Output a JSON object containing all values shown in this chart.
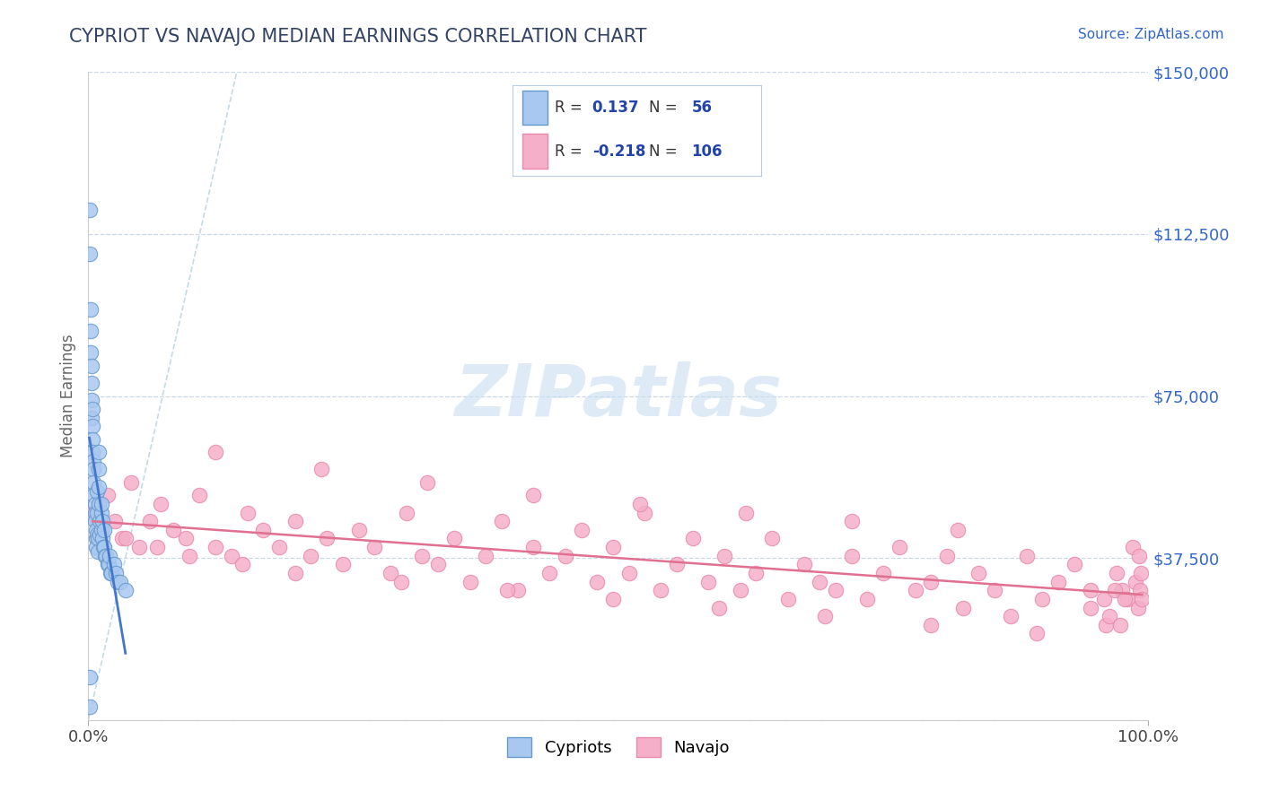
{
  "title": "CYPRIOT VS NAVAJO MEDIAN EARNINGS CORRELATION CHART",
  "source": "Source: ZipAtlas.com",
  "ylabel": "Median Earnings",
  "xlim": [
    0,
    1
  ],
  "ylim": [
    0,
    150000
  ],
  "yticks": [
    0,
    37500,
    75000,
    112500,
    150000
  ],
  "ytick_labels_right": [
    "",
    "$37,500",
    "$75,000",
    "$112,500",
    "$150,000"
  ],
  "xticks": [
    0,
    1
  ],
  "xtick_labels": [
    "0.0%",
    "100.0%"
  ],
  "cypriot_color": "#a8c8f0",
  "navajo_color": "#f5afc8",
  "cypriot_edge": "#6699cc",
  "navajo_edge": "#e88aaa",
  "trend_cypriot": "#4477cc",
  "trend_navajo": "#e07090",
  "legend_R_cypriot": "0.137",
  "legend_R_navajo": "-0.218",
  "legend_N_cypriot": "56",
  "legend_N_navajo": "106",
  "legend_color": "#2244aa",
  "background_color": "#ffffff",
  "grid_color": "#c8d8e8",
  "watermark": "ZIPatlas",
  "watermark_color": "#c8dff0",
  "title_color": "#334466",
  "source_color": "#3366cc",
  "axis_label_color": "#3366cc",
  "cypriot_x": [
    0.001,
    0.001,
    0.002,
    0.002,
    0.002,
    0.003,
    0.003,
    0.003,
    0.003,
    0.004,
    0.004,
    0.004,
    0.005,
    0.005,
    0.005,
    0.005,
    0.006,
    0.006,
    0.006,
    0.007,
    0.007,
    0.007,
    0.008,
    0.008,
    0.008,
    0.009,
    0.009,
    0.01,
    0.01,
    0.01,
    0.01,
    0.011,
    0.011,
    0.012,
    0.012,
    0.013,
    0.013,
    0.014,
    0.015,
    0.015,
    0.016,
    0.017,
    0.018,
    0.019,
    0.02,
    0.021,
    0.022,
    0.024,
    0.026,
    0.028,
    0.03,
    0.035,
    0.004,
    0.012,
    0.001,
    0.001
  ],
  "cypriot_y": [
    118000,
    108000,
    95000,
    90000,
    85000,
    82000,
    78000,
    74000,
    70000,
    68000,
    65000,
    62000,
    60000,
    58000,
    55000,
    52000,
    50000,
    48000,
    46000,
    44000,
    42000,
    40000,
    53000,
    48000,
    43000,
    42000,
    39000,
    62000,
    58000,
    54000,
    50000,
    46000,
    43000,
    48000,
    44000,
    46000,
    42000,
    40000,
    44000,
    40000,
    38000,
    38000,
    36000,
    36000,
    38000,
    34000,
    34000,
    36000,
    34000,
    32000,
    32000,
    30000,
    72000,
    50000,
    10000,
    3000
  ],
  "navajo_x": [
    0.004,
    0.008,
    0.012,
    0.018,
    0.025,
    0.032,
    0.04,
    0.048,
    0.058,
    0.068,
    0.08,
    0.092,
    0.105,
    0.12,
    0.135,
    0.15,
    0.165,
    0.18,
    0.195,
    0.21,
    0.225,
    0.24,
    0.255,
    0.27,
    0.285,
    0.3,
    0.315,
    0.33,
    0.345,
    0.36,
    0.375,
    0.39,
    0.405,
    0.42,
    0.435,
    0.45,
    0.465,
    0.48,
    0.495,
    0.51,
    0.525,
    0.54,
    0.555,
    0.57,
    0.585,
    0.6,
    0.615,
    0.63,
    0.645,
    0.66,
    0.675,
    0.69,
    0.705,
    0.72,
    0.735,
    0.75,
    0.765,
    0.78,
    0.795,
    0.81,
    0.825,
    0.84,
    0.855,
    0.87,
    0.885,
    0.9,
    0.915,
    0.93,
    0.945,
    0.96,
    0.97,
    0.975,
    0.98,
    0.985,
    0.988,
    0.99,
    0.991,
    0.992,
    0.993,
    0.994,
    0.12,
    0.22,
    0.32,
    0.42,
    0.52,
    0.62,
    0.72,
    0.82,
    0.035,
    0.065,
    0.095,
    0.145,
    0.195,
    0.295,
    0.395,
    0.495,
    0.595,
    0.695,
    0.795,
    0.895,
    0.945,
    0.958,
    0.963,
    0.968,
    0.973,
    0.978
  ],
  "navajo_y": [
    48000,
    46000,
    44000,
    52000,
    46000,
    42000,
    55000,
    40000,
    46000,
    50000,
    44000,
    42000,
    52000,
    40000,
    38000,
    48000,
    44000,
    40000,
    46000,
    38000,
    42000,
    36000,
    44000,
    40000,
    34000,
    48000,
    38000,
    36000,
    42000,
    32000,
    38000,
    46000,
    30000,
    40000,
    34000,
    38000,
    44000,
    32000,
    40000,
    34000,
    48000,
    30000,
    36000,
    42000,
    32000,
    38000,
    30000,
    34000,
    42000,
    28000,
    36000,
    32000,
    30000,
    38000,
    28000,
    34000,
    40000,
    30000,
    32000,
    38000,
    26000,
    34000,
    30000,
    24000,
    38000,
    28000,
    32000,
    36000,
    30000,
    22000,
    34000,
    30000,
    28000,
    40000,
    32000,
    26000,
    38000,
    30000,
    34000,
    28000,
    62000,
    58000,
    55000,
    52000,
    50000,
    48000,
    46000,
    44000,
    42000,
    40000,
    38000,
    36000,
    34000,
    32000,
    30000,
    28000,
    26000,
    24000,
    22000,
    20000,
    26000,
    28000,
    24000,
    30000,
    22000,
    28000
  ]
}
